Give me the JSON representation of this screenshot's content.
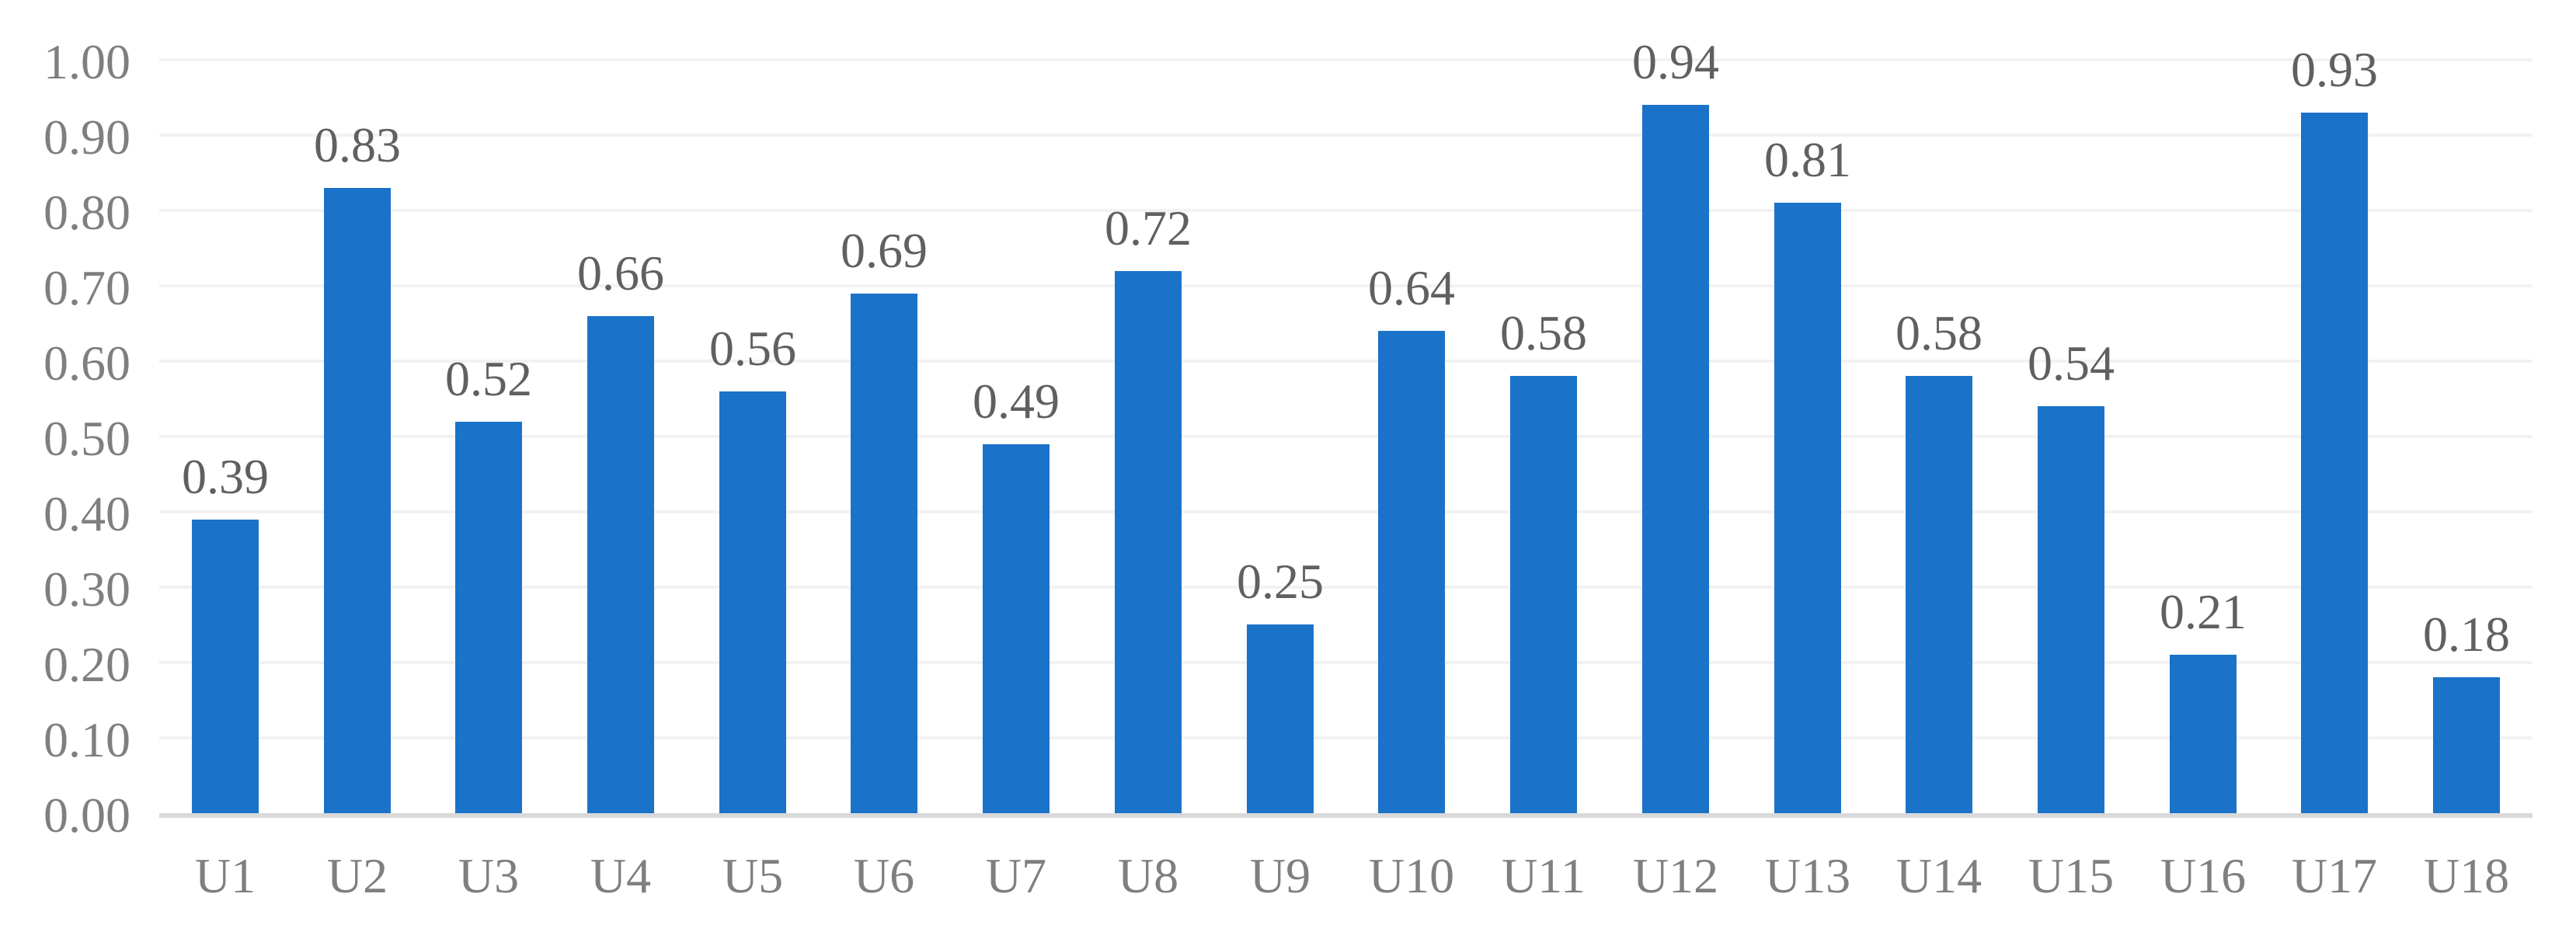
{
  "chart_data": {
    "type": "bar",
    "title": "",
    "xlabel": "",
    "ylabel": "",
    "categories": [
      "U1",
      "U2",
      "U3",
      "U4",
      "U5",
      "U6",
      "U7",
      "U8",
      "U9",
      "U10",
      "U11",
      "U12",
      "U13",
      "U14",
      "U15",
      "U16",
      "U17",
      "U18"
    ],
    "values": [
      0.39,
      0.83,
      0.52,
      0.66,
      0.56,
      0.69,
      0.49,
      0.72,
      0.25,
      0.64,
      0.58,
      0.94,
      0.81,
      0.58,
      0.54,
      0.21,
      0.93,
      0.18
    ],
    "data_labels": [
      "0.39",
      "0.83",
      "0.52",
      "0.66",
      "0.56",
      "0.69",
      "0.49",
      "0.72",
      "0.25",
      "0.64",
      "0.58",
      "0.94",
      "0.81",
      "0.58",
      "0.54",
      "0.21",
      "0.93",
      "0.18"
    ],
    "y_ticks": [
      "0.00",
      "0.10",
      "0.20",
      "0.30",
      "0.40",
      "0.50",
      "0.60",
      "0.70",
      "0.80",
      "0.90",
      "1.00"
    ],
    "ylim": [
      0,
      1
    ],
    "y_tick_step": 0.1,
    "grid": "horizontal",
    "legend": "none",
    "colors": {
      "bar": "#1A73C8",
      "gridline": "#F2F2F2",
      "axis_line": "#D9D9D9",
      "tick_label": "#7F7F7F",
      "data_label": "#606060",
      "background": "#FFFFFF"
    }
  }
}
